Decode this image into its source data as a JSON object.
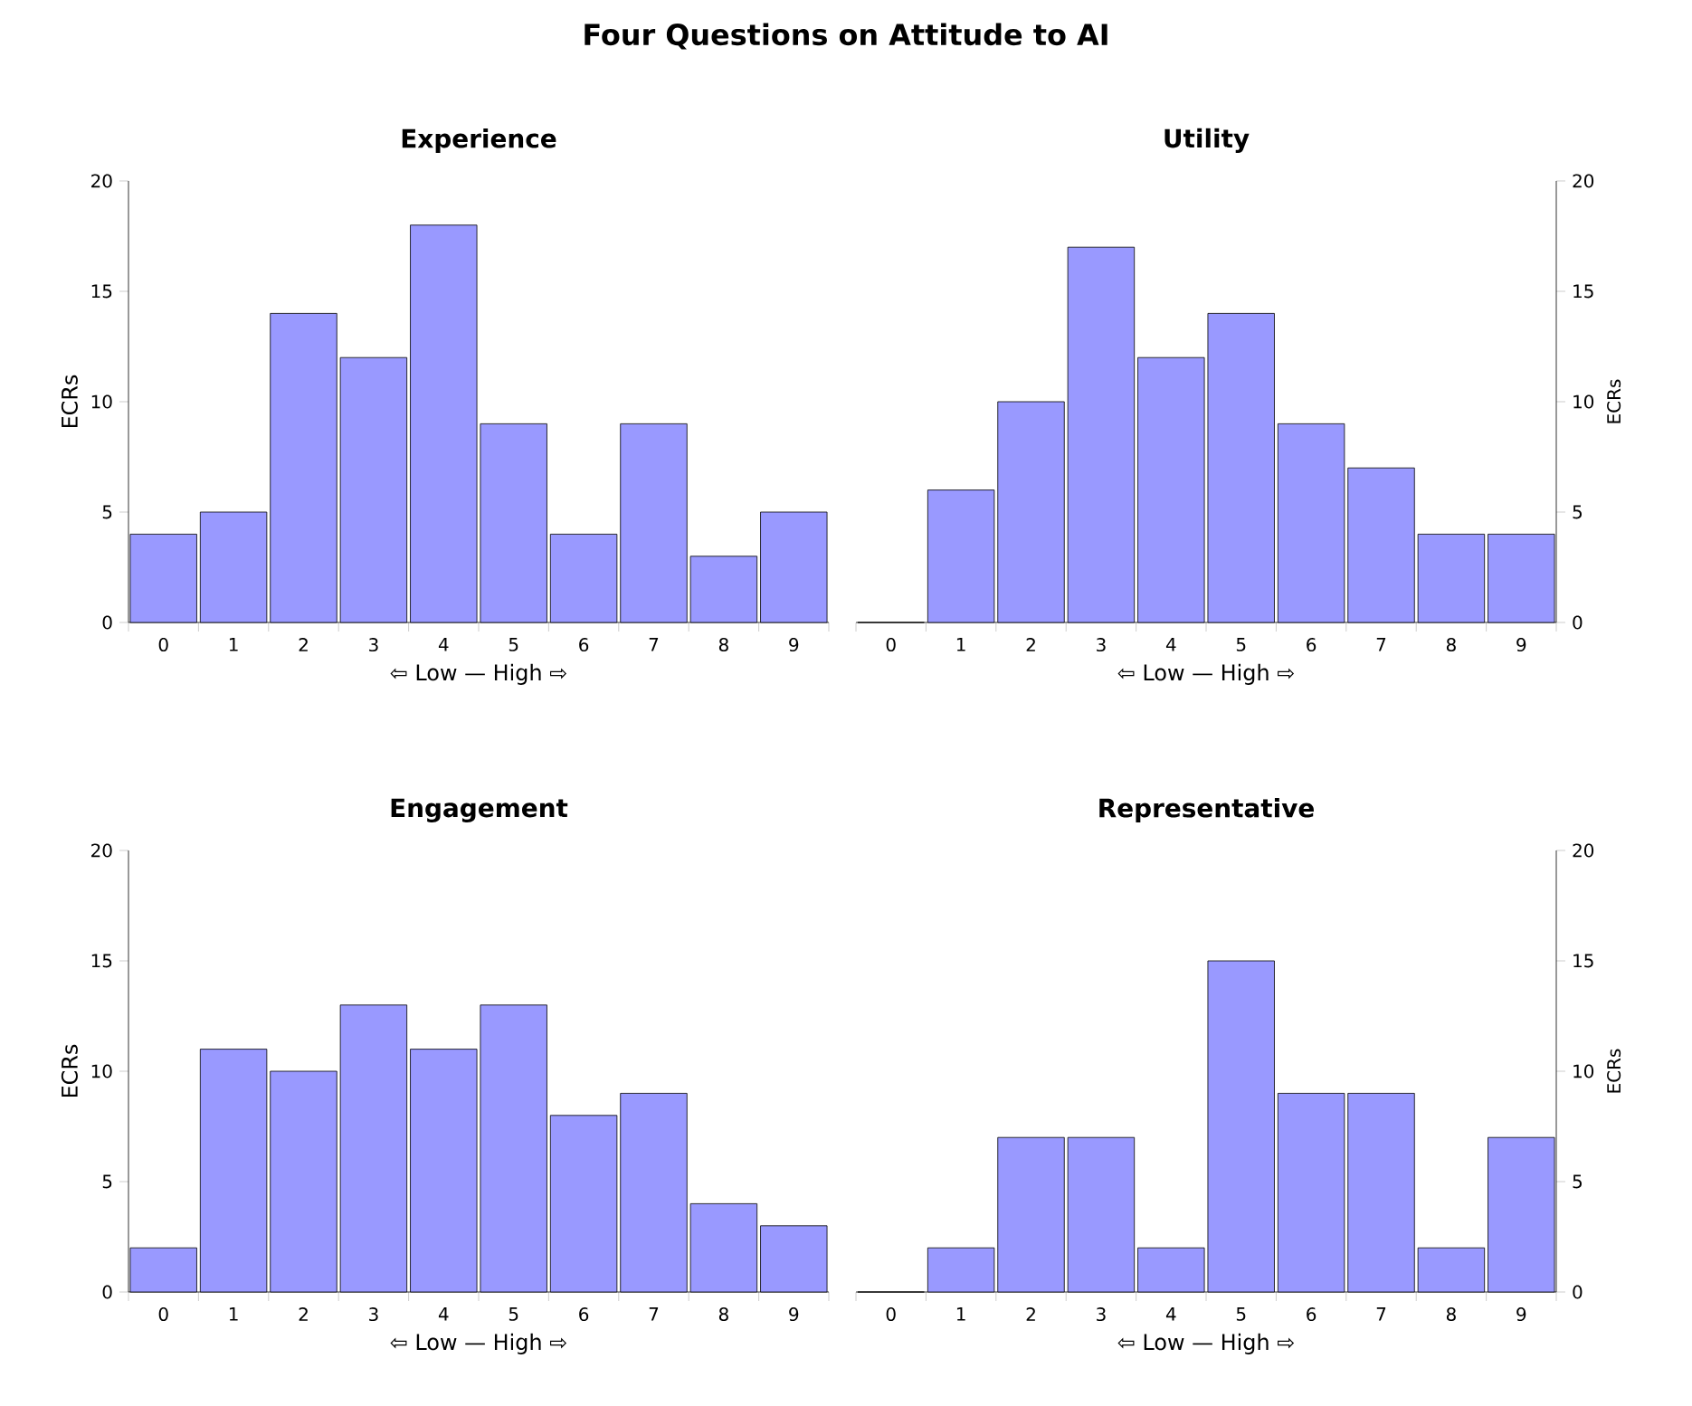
{
  "chart_data": [
    {
      "type": "bar",
      "title": "Experience",
      "xlabel": "⇦ Low — High ⇨",
      "ylabel": "ECRs",
      "annotations": [
        "Four Questions on Attitude to AI"
      ],
      "categories": [
        "0",
        "1",
        "2",
        "3",
        "4",
        "5",
        "6",
        "7",
        "8",
        "9"
      ],
      "values": [
        4,
        5,
        14,
        12,
        18,
        9,
        4,
        9,
        3,
        5
      ],
      "color": "#9999ff",
      "ylim": [
        0,
        20
      ],
      "yticks": [
        0,
        5,
        10,
        15,
        20
      ]
    },
    {
      "type": "bar",
      "title": "Utility",
      "xlabel": "⇦ Low — High ⇨",
      "ylabel": "ECRs",
      "categories": [
        "0",
        "1",
        "2",
        "3",
        "4",
        "5",
        "6",
        "7",
        "8",
        "9"
      ],
      "values": [
        0,
        6,
        10,
        17,
        12,
        14,
        9,
        7,
        4,
        4
      ],
      "color": "#9999ff",
      "ylim": [
        0,
        20
      ],
      "yticks": [
        0,
        5,
        10,
        15,
        20
      ]
    },
    {
      "type": "bar",
      "title": "Engagement",
      "xlabel": "⇦ Low — High ⇨",
      "ylabel": "ECRs",
      "categories": [
        "0",
        "1",
        "2",
        "3",
        "4",
        "5",
        "6",
        "7",
        "8",
        "9"
      ],
      "values": [
        2,
        11,
        10,
        13,
        11,
        13,
        8,
        9,
        4,
        3
      ],
      "color": "#9999ff",
      "ylim": [
        0,
        20
      ],
      "yticks": [
        0,
        5,
        10,
        15,
        20
      ]
    },
    {
      "type": "bar",
      "title": "Representative",
      "xlabel": "⇦ Low — High ⇨",
      "ylabel": "ECRs",
      "categories": [
        "0",
        "1",
        "2",
        "3",
        "4",
        "5",
        "6",
        "7",
        "8",
        "9"
      ],
      "values": [
        0,
        2,
        7,
        7,
        2,
        15,
        9,
        9,
        2,
        7
      ],
      "color": "#9999ff",
      "ylim": [
        0,
        20
      ],
      "yticks": [
        0,
        5,
        10,
        15,
        20
      ]
    }
  ]
}
